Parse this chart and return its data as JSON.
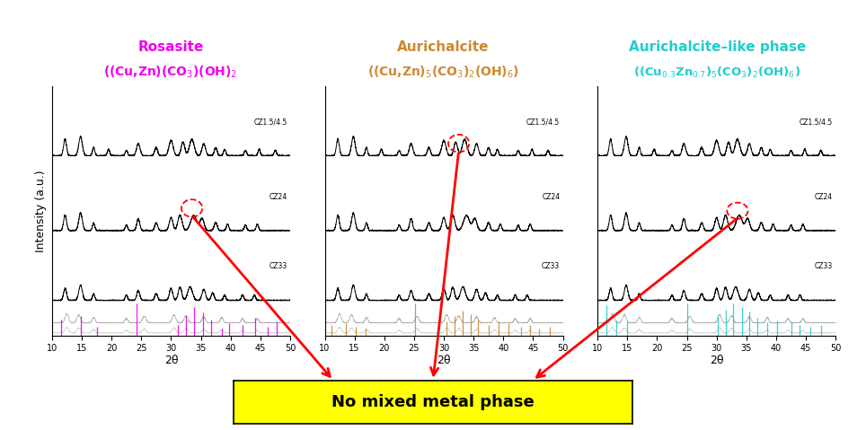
{
  "color1": "#EE00EE",
  "color2": "#CC8833",
  "color3": "#22CCCC",
  "xmin": 10,
  "xmax": 50,
  "ylabel": "Intensity (a.u.)",
  "xlabel": "2θ",
  "bottom_label": "No mixed metal phase",
  "sample_labels": [
    "CZ1.5/4.5",
    "CZ24",
    "CZ33"
  ],
  "rosasite_ref_peaks": [
    11.5,
    14.8,
    17.5,
    24.2,
    31.2,
    32.5,
    33.8,
    35.3,
    36.8,
    38.6,
    39.8,
    42.0,
    44.1,
    46.2,
    47.8
  ],
  "rosasite_ref_heights": [
    0.45,
    0.55,
    0.25,
    0.9,
    0.3,
    0.55,
    0.8,
    0.65,
    0.45,
    0.2,
    0.35,
    0.3,
    0.5,
    0.25,
    0.4
  ],
  "aurichalcite_ref_peaks": [
    11.2,
    13.5,
    15.2,
    16.8,
    25.2,
    30.5,
    31.8,
    33.2,
    34.5,
    35.8,
    37.5,
    39.2,
    40.8,
    43.0,
    44.5,
    46.0,
    47.8
  ],
  "aurichalcite_ref_heights": [
    0.3,
    0.35,
    0.25,
    0.2,
    0.9,
    0.4,
    0.55,
    0.7,
    0.6,
    0.45,
    0.3,
    0.4,
    0.35,
    0.25,
    0.3,
    0.2,
    0.25
  ],
  "aurichalcite_like_ref_peaks": [
    11.5,
    13.2,
    15.0,
    25.0,
    30.2,
    31.5,
    32.8,
    34.2,
    35.5,
    36.8,
    38.5,
    40.2,
    42.5,
    44.0,
    45.8,
    47.5
  ],
  "aurichalcite_like_ref_heights": [
    0.7,
    0.35,
    0.3,
    0.75,
    0.45,
    0.6,
    0.75,
    0.65,
    0.55,
    0.4,
    0.3,
    0.35,
    0.3,
    0.25,
    0.2,
    0.25
  ]
}
